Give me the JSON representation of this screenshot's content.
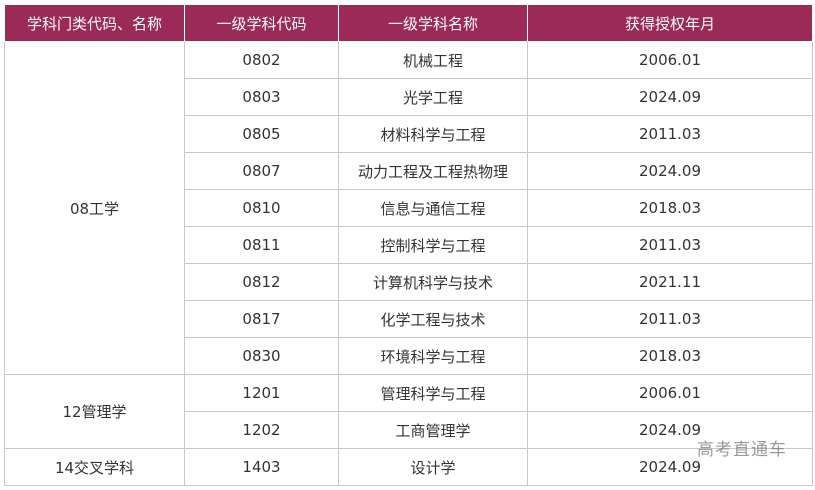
{
  "table": {
    "headers": [
      "学科门类代码、名称",
      "一级学科代码",
      "一级学科名称",
      "获得授权年月"
    ],
    "groups": [
      {
        "category": "08工学",
        "rows": [
          {
            "code": "0802",
            "name": "机械工程",
            "date": "2006.01"
          },
          {
            "code": "0803",
            "name": "光学工程",
            "date": "2024.09"
          },
          {
            "code": "0805",
            "name": "材料科学与工程",
            "date": "2011.03"
          },
          {
            "code": "0807",
            "name": "动力工程及工程热物理",
            "date": "2024.09"
          },
          {
            "code": "0810",
            "name": "信息与通信工程",
            "date": "2018.03"
          },
          {
            "code": "0811",
            "name": "控制科学与工程",
            "date": "2011.03"
          },
          {
            "code": "0812",
            "name": "计算机科学与技术",
            "date": "2021.11"
          },
          {
            "code": "0817",
            "name": "化学工程与技术",
            "date": "2011.03"
          },
          {
            "code": "0830",
            "name": "环境科学与工程",
            "date": "2018.03"
          }
        ]
      },
      {
        "category": "12管理学",
        "rows": [
          {
            "code": "1201",
            "name": "管理科学与工程",
            "date": "2006.01"
          },
          {
            "code": "1202",
            "name": "工商管理学",
            "date": "2024.09"
          }
        ]
      },
      {
        "category": "14交叉学科",
        "rows": [
          {
            "code": "1403",
            "name": "设计学",
            "date": "2024.09"
          }
        ]
      }
    ]
  },
  "watermark": "高考直通车",
  "colors": {
    "header_bg": "#9c2a57",
    "header_text": "#ffffff",
    "border": "#c8c8c8"
  }
}
